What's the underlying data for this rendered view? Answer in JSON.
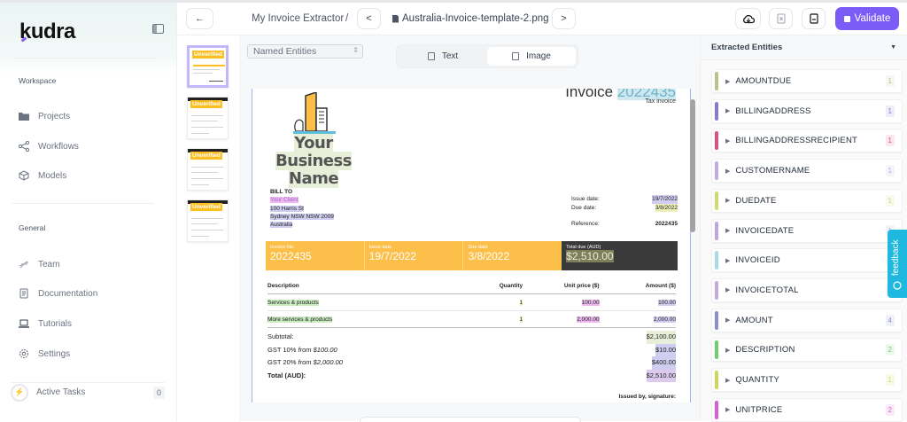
{
  "app": {
    "logo": "kudra"
  },
  "sidebar": {
    "workspace_label": "Workspace",
    "workspace_items": [
      {
        "label": "Projects",
        "icon": "folder-icon"
      },
      {
        "label": "Workflows",
        "icon": "workflow-icon"
      },
      {
        "label": "Models",
        "icon": "cube-icon"
      }
    ],
    "general_label": "General",
    "general_items": [
      {
        "label": "Team",
        "icon": "team-icon"
      },
      {
        "label": "Documentation",
        "icon": "document-icon"
      },
      {
        "label": "Tutorials",
        "icon": "laptop-icon"
      },
      {
        "label": "Settings",
        "icon": "gear-icon"
      }
    ],
    "active_tasks": {
      "label": "Active Tasks",
      "count": "0"
    }
  },
  "header": {
    "back": "←",
    "project": "My Invoice Extractor",
    "separator": "/",
    "prev": "<",
    "filename": "Australia-Invoice-template-2.png",
    "next": ">",
    "validate_label": "Validate",
    "accent": "#7c5cf6"
  },
  "thumbnails": [
    {
      "badge": "Unverified",
      "selected": true
    },
    {
      "badge": "Unverified",
      "selected": false
    },
    {
      "badge": "Unverified",
      "selected": false
    },
    {
      "badge": "Unverified",
      "selected": false
    }
  ],
  "viewer": {
    "entity_select": "Named Entities",
    "tabs": [
      {
        "label": "Text"
      },
      {
        "label": "Image",
        "active": true
      }
    ]
  },
  "invoice": {
    "title_prefix": "Invoice",
    "title_number": "2022435",
    "subtitle": "Tax invoice",
    "business_name_1": "Your Business",
    "business_name_2": "Name",
    "bill_to": "BILL TO",
    "client": "Your Client",
    "address1": "100 Harris St",
    "address2": "Sydney NSW NSW 2009",
    "address3": "Australia",
    "issue_date_label": "Issue date:",
    "issue_date": "19/7/2022",
    "due_date_label": "Due date:",
    "due_date": "3/8/2022",
    "reference_label": "Reference:",
    "reference": "2022435",
    "band": [
      {
        "label": "Invoice No.",
        "value": "2022435"
      },
      {
        "label": "Issue date",
        "value": "19/7/2022"
      },
      {
        "label": "Due date",
        "value": "3/8/2022"
      },
      {
        "label": "Total due (AUD)",
        "value": "$2,510.00"
      }
    ],
    "columns": [
      "Description",
      "Quantity",
      "Unit price ($)",
      "Amount ($)"
    ],
    "rows": [
      {
        "desc": "Services & products",
        "qty": "1",
        "unit": "100.00",
        "amount": "100.00"
      },
      {
        "desc": "More services & products",
        "qty": "1",
        "unit": "2,000.00",
        "amount": "2,000.00"
      }
    ],
    "subtotal_label": "Subtotal:",
    "subtotal": "$2,100.00",
    "gst1_label": "GST 10%",
    "gst1_from": "from $100.00",
    "gst1": "$10.00",
    "gst2_label": "GST 20%",
    "gst2_from": "from $2,000.00",
    "gst2": "$400.00",
    "total_label": "Total (AUD):",
    "total": "$2,510.00",
    "issued_by": "Issued by, signature:"
  },
  "entities": {
    "title": "Extracted Entities",
    "items": [
      {
        "name": "AMOUNTDUE",
        "count": "1",
        "color": "#b9c38a"
      },
      {
        "name": "BILLINGADDRESS",
        "count": "1",
        "color": "#8a78d6"
      },
      {
        "name": "BILLINGADDRESSRECIPIENT",
        "count": "1",
        "color": "#e0507d"
      },
      {
        "name": "CUSTOMERNAME",
        "count": "1",
        "color": "#c3a8e3"
      },
      {
        "name": "DUEDATE",
        "count": "1",
        "color": "#cfdb6e"
      },
      {
        "name": "INVOICEDATE",
        "count": "1",
        "color": "#bba9dd"
      },
      {
        "name": "INVOICEID",
        "count": "1",
        "color": "#a9dbe6"
      },
      {
        "name": "INVOICETOTAL",
        "count": "1",
        "color": "#c7a9db"
      },
      {
        "name": "AMOUNT",
        "count": "4",
        "color": "#8a8fd0"
      },
      {
        "name": "DESCRIPTION",
        "count": "2",
        "color": "#6fcf6a"
      },
      {
        "name": "QUANTITY",
        "count": "1",
        "color": "#cbd85a"
      },
      {
        "name": "UNITPRICE",
        "count": "2",
        "color": "#d65fd6"
      }
    ]
  },
  "feedback": {
    "label": "feedback",
    "color": "#1fb8de"
  }
}
